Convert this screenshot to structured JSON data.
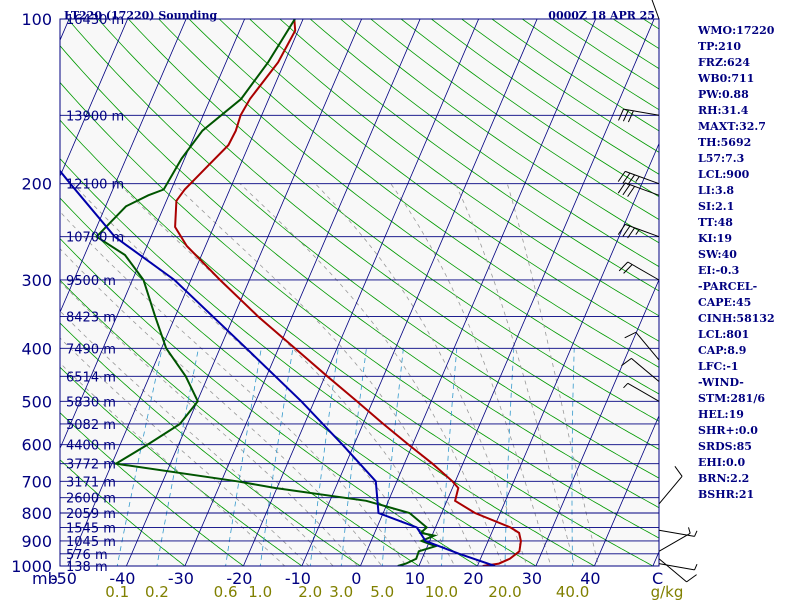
{
  "header": {
    "station": "LT220 (17220) Sounding",
    "time": "0000Z 18 APR 25"
  },
  "colors": {
    "frame": "#000080",
    "isobar": "#000080",
    "isotherm": "#000080",
    "dry_adiabat": "#009900",
    "moist_adiabat": "#999999",
    "mixing_ratio": "#3399cc",
    "temperature": "#aa0000",
    "dewpoint": "#005500",
    "parcel": "#0000aa",
    "wind": "#000000"
  },
  "indices": [
    "WMO:17220",
    "TP:210",
    "FRZ:624",
    "WB0:711",
    "PW:0.88",
    "RH:31.4",
    "MAXT:32.7",
    "TH:5692",
    "L57:7.3",
    "LCL:900",
    "LI:3.8",
    "SI:2.1",
    "TT:48",
    "KI:19",
    "SW:40",
    "EI:-0.3",
    "-PARCEL-",
    "CAPE:45",
    "CINH:58132",
    "LCL:801",
    "CAP:8.9",
    "LFC:-1",
    "-WIND-",
    "STM:281/6",
    "HEL:19",
    "SHR+:0.0",
    "SRDS:85",
    "EHI:0.0",
    "BRN:2.2",
    "BSHR:21"
  ],
  "chart_data": {
    "type": "line",
    "subtype": "skew-t log-p",
    "pressure_axis": {
      "ticks": [
        100,
        200,
        300,
        400,
        500,
        600,
        700,
        800,
        900,
        1000
      ],
      "unit_label": "mb",
      "scale": "log",
      "range": [
        1000,
        100
      ]
    },
    "temperature_axis": {
      "ticks": [
        -50,
        -40,
        -30,
        -20,
        -10,
        0,
        10,
        20,
        30,
        40
      ],
      "end_label": "C",
      "range": [
        -50,
        50
      ]
    },
    "mixing_ratio_labels": [
      "0.1",
      "0.2",
      "0.6",
      "1.0",
      "2.0",
      "3.0",
      "5.0",
      "10.0",
      "20.0",
      "40.0",
      "g/kg"
    ],
    "mixing_ratio_values": [
      0.1,
      0.2,
      0.6,
      1.0,
      2.0,
      3.0,
      5.0,
      10.0,
      20.0,
      40.0
    ],
    "height_labels": [
      {
        "p": 100,
        "label": "16430 m"
      },
      {
        "p": 150,
        "label": "13900 m"
      },
      {
        "p": 200,
        "label": "12100 m"
      },
      {
        "p": 250,
        "label": "10700 m"
      },
      {
        "p": 300,
        "label": "9500 m"
      },
      {
        "p": 350,
        "label": "8423 m"
      },
      {
        "p": 400,
        "label": "7490 m"
      },
      {
        "p": 450,
        "label": "6514 m"
      },
      {
        "p": 500,
        "label": "5830 m"
      },
      {
        "p": 550,
        "label": "5082 m"
      },
      {
        "p": 600,
        "label": "4400 m"
      },
      {
        "p": 650,
        "label": "3772 m"
      },
      {
        "p": 700,
        "label": "3171 m"
      },
      {
        "p": 750,
        "label": "2600 m"
      },
      {
        "p": 800,
        "label": "2059 m"
      },
      {
        "p": 850,
        "label": "1545 m"
      },
      {
        "p": 900,
        "label": "1045 m"
      },
      {
        "p": 950,
        "label": "576 m"
      },
      {
        "p": 1000,
        "label": "138 m"
      }
    ],
    "series": [
      {
        "key": "temperature",
        "points": [
          [
            1000,
            20.9
          ],
          [
            990,
            23.5
          ],
          [
            970,
            25.0
          ],
          [
            940,
            26.1
          ],
          [
            900,
            25.6
          ],
          [
            870,
            24.7
          ],
          [
            850,
            22.8
          ],
          [
            800,
            15.7
          ],
          [
            760,
            11.4
          ],
          [
            720,
            11.0
          ],
          [
            700,
            9.5
          ],
          [
            650,
            4.8
          ],
          [
            600,
            -0.7
          ],
          [
            550,
            -6.5
          ],
          [
            500,
            -12.7
          ],
          [
            450,
            -19.6
          ],
          [
            400,
            -27.2
          ],
          [
            350,
            -35.8
          ],
          [
            300,
            -45.0
          ],
          [
            260,
            -53.2
          ],
          [
            240,
            -56.6
          ],
          [
            215,
            -58.3
          ],
          [
            205,
            -57.7
          ],
          [
            185,
            -55.4
          ],
          [
            170,
            -53.5
          ],
          [
            160,
            -53.3
          ],
          [
            150,
            -53.6
          ],
          [
            140,
            -53.2
          ],
          [
            120,
            -51.1
          ],
          [
            105,
            -50.5
          ],
          [
            100,
            -51.5
          ]
        ]
      },
      {
        "key": "dewpoint",
        "points": [
          [
            1000,
            6.4
          ],
          [
            990,
            7.6
          ],
          [
            970,
            9.0
          ],
          [
            940,
            8.9
          ],
          [
            920,
            11.4
          ],
          [
            900,
            8.6
          ],
          [
            880,
            10.4
          ],
          [
            870,
            7.9
          ],
          [
            850,
            8.5
          ],
          [
            800,
            4.5
          ],
          [
            760,
            -3.8
          ],
          [
            720,
            -20.3
          ],
          [
            700,
            -27.3
          ],
          [
            650,
            -49.3
          ],
          [
            600,
            -45.3
          ],
          [
            550,
            -41.3
          ],
          [
            500,
            -39.9
          ],
          [
            450,
            -43.8
          ],
          [
            400,
            -49.2
          ],
          [
            350,
            -53.4
          ],
          [
            300,
            -58.1
          ],
          [
            270,
            -63.1
          ],
          [
            250,
            -69.3
          ],
          [
            220,
            -66.5
          ],
          [
            210,
            -63.5
          ],
          [
            205,
            -61.3
          ],
          [
            180,
            -60.5
          ],
          [
            160,
            -59.0
          ],
          [
            140,
            -54.7
          ],
          [
            120,
            -52.8
          ],
          [
            100,
            -51.4
          ]
        ]
      },
      {
        "key": "parcel",
        "points": [
          [
            1000,
            23.0
          ],
          [
            950,
            16.0
          ],
          [
            900,
            9.3
          ],
          [
            850,
            6.8
          ],
          [
            800,
            -0.8
          ],
          [
            700,
            -3.6
          ],
          [
            600,
            -12.0
          ],
          [
            500,
            -22.2
          ],
          [
            400,
            -35.5
          ],
          [
            300,
            -52.8
          ],
          [
            250,
            -66.2
          ],
          [
            200,
            -77.7
          ],
          [
            150,
            -92.2
          ],
          [
            130,
            -99.2
          ],
          [
            110,
            -108.0
          ]
        ]
      }
    ],
    "wind_barbs": [
      {
        "p": 990,
        "dir": 100,
        "spd": 5
      },
      {
        "p": 970,
        "dir": 130,
        "spd": 10
      },
      {
        "p": 940,
        "dir": 60,
        "spd": 5
      },
      {
        "p": 860,
        "dir": 100,
        "spd": 5
      },
      {
        "p": 770,
        "dir": 40,
        "spd": 10
      },
      {
        "p": 500,
        "dir": 300,
        "spd": 5
      },
      {
        "p": 460,
        "dir": 310,
        "spd": 10
      },
      {
        "p": 420,
        "dir": 320,
        "spd": 10
      },
      {
        "p": 300,
        "dir": 300,
        "spd": 20
      },
      {
        "p": 250,
        "dir": 290,
        "spd": 35
      },
      {
        "p": 210,
        "dir": 290,
        "spd": 30
      },
      {
        "p": 200,
        "dir": 290,
        "spd": 35
      },
      {
        "p": 150,
        "dir": 280,
        "spd": 30
      },
      {
        "p": 100,
        "dir": 340,
        "spd": 10
      }
    ]
  }
}
